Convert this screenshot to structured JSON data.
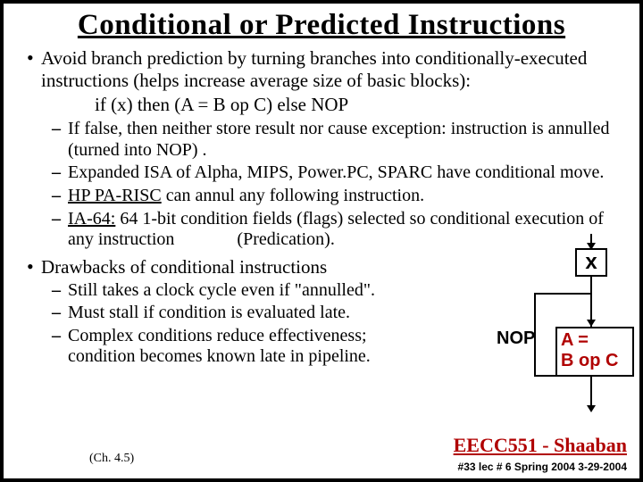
{
  "title": "Conditional or Predicted Instructions",
  "intro": {
    "text": "Avoid branch prediction by turning branches into conditionally-executed instructions (helps increase average size of basic blocks):",
    "code": "if (x)   then  (A =  B op C)  else   NOP"
  },
  "sub1": [
    {
      "plain": "If false, then neither store result nor cause exception: instruction is annulled (turned into NOP) ."
    },
    {
      "plain": "Expanded ISA of Alpha, MIPS, Power.PC, SPARC have conditional move."
    },
    {
      "html": "<span class='underline'>HP PA-RISC</span> can annul any following instruction."
    },
    {
      "html": "<span class='underline'>IA-64:</span>  64 1-bit condition fields (flags) selected so conditional execution of any instruction &nbsp;&nbsp;&nbsp;&nbsp;&nbsp;&nbsp;&nbsp;&nbsp;&nbsp;&nbsp;&nbsp;&nbsp;&nbsp;(Predication)."
    }
  ],
  "drawbacks": {
    "heading": "Drawbacks of conditional instructions",
    "items": [
      "Still takes a clock cycle even if  \"annulled\".",
      "Must stall if condition is evaluated late.",
      "Complex conditions reduce effectiveness; condition becomes known late in pipeline."
    ]
  },
  "diagram": {
    "x_label": "x",
    "nop_label": "NOP",
    "a_line1": "A =",
    "a_line2": "B op C",
    "box_border": "#000000",
    "accent_color": "#b00000"
  },
  "footer": {
    "course": "EECC551 - Shaaban",
    "meta": "#33   lec # 6    Spring 2004  3-29-2004",
    "chapter": "(Ch. 4.5)"
  },
  "colors": {
    "background": "#ffffff",
    "text": "#000000",
    "border": "#000000",
    "accent": "#b00000"
  }
}
